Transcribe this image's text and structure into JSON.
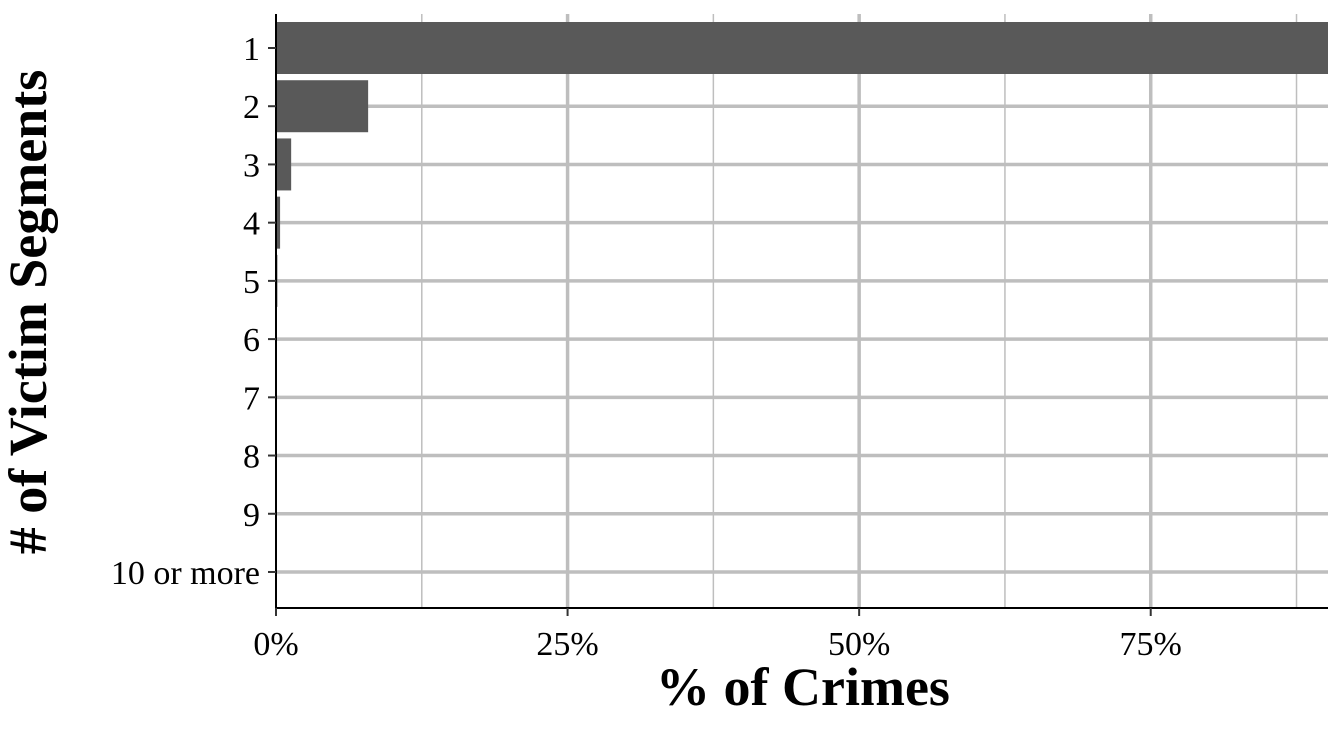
{
  "chart_data": {
    "type": "bar",
    "orientation": "horizontal",
    "categories": [
      "1",
      "2",
      "3",
      "4",
      "5",
      "6",
      "7",
      "8",
      "9",
      "10 or more"
    ],
    "values": [
      90.2,
      7.9,
      1.3,
      0.35,
      0.12,
      0.05,
      0.02,
      0.01,
      0.01,
      0.01
    ],
    "xlabel": "% of Crimes",
    "ylabel": "# of Victim Segments",
    "xlim": [
      0,
      90.2
    ],
    "xticks": [
      0,
      25,
      50,
      75
    ],
    "xtick_labels": [
      "0%",
      "25%",
      "50%",
      "75%"
    ],
    "grid": true,
    "bar_color": "#595959",
    "grid_color": "#bebebe"
  }
}
